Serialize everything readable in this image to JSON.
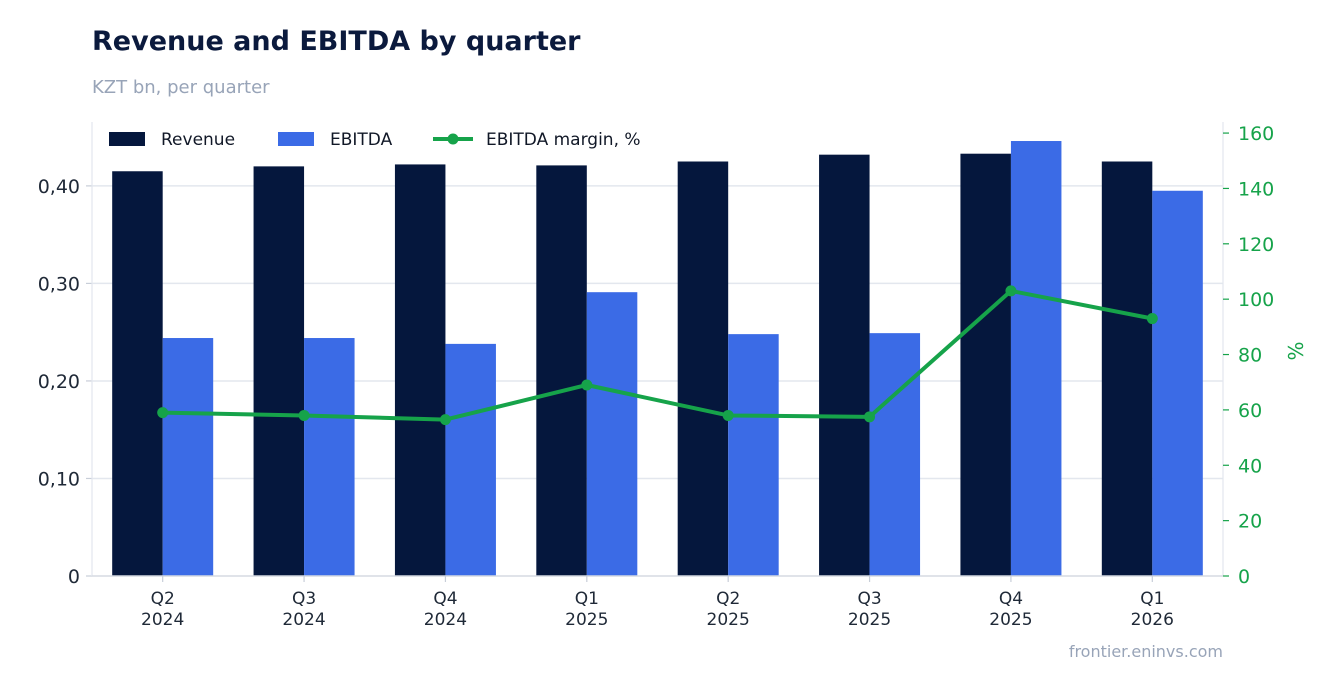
{
  "header": {
    "title": "Revenue and EBITDA by quarter",
    "subtitle": "KZT bn, per quarter"
  },
  "footer": {
    "source": "frontier.eninvs.com"
  },
  "colors": {
    "revenue": "#05173d",
    "ebitda": "#3b6be6",
    "margin": "#16a34a",
    "grid": "#e3e7ee",
    "axis_text": "#1f2937"
  },
  "chart_data": {
    "type": "bar",
    "categories": [
      "Q2\n2024",
      "Q3\n2024",
      "Q4\n2024",
      "Q1\n2025",
      "Q2\n2025",
      "Q3\n2025",
      "Q4\n2025",
      "Q1\n2026"
    ],
    "series": [
      {
        "name": "Revenue",
        "type": "bar",
        "axis": "left",
        "values": [
          0.415,
          0.42,
          0.422,
          0.421,
          0.425,
          0.432,
          0.433,
          0.425
        ]
      },
      {
        "name": "EBITDA",
        "type": "bar",
        "axis": "left",
        "values": [
          0.244,
          0.244,
          0.238,
          0.291,
          0.248,
          0.249,
          0.446,
          0.395
        ]
      },
      {
        "name": "EBITDA margin, %",
        "type": "line",
        "axis": "right",
        "values": [
          59,
          58,
          56.5,
          69,
          58,
          57.5,
          103,
          93
        ]
      }
    ],
    "y_left": {
      "ticks": [
        0,
        0.1,
        0.2,
        0.3,
        0.4
      ],
      "tick_labels": [
        "0",
        "0,10",
        "0,20",
        "0,30",
        "0,40"
      ],
      "range": [
        0,
        0.4655
      ]
    },
    "y_right": {
      "label": "%",
      "ticks": [
        0,
        20,
        40,
        60,
        80,
        100,
        120,
        140,
        160
      ],
      "tick_labels": [
        "0",
        "20",
        "40",
        "60",
        "80",
        "100",
        "120",
        "140",
        "160"
      ],
      "range": [
        0,
        164
      ]
    },
    "grid": "horizontal",
    "legend": "top-left"
  }
}
